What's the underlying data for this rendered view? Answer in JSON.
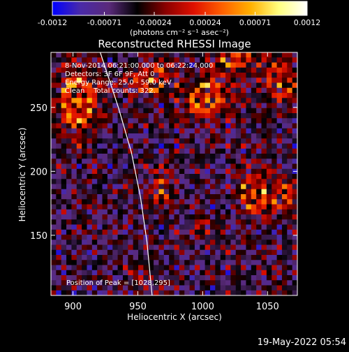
{
  "chart_data": {
    "type": "heatmap",
    "title": "Reconstructed RHESSI Image",
    "xlabel": "Heliocentric X (arcsec)",
    "ylabel": "Heliocentric Y (arcsec)",
    "xlim": [
      883,
      1073
    ],
    "ylim": [
      103,
      293
    ],
    "x_ticks": [
      900,
      950,
      1000,
      1050
    ],
    "y_ticks": [
      150,
      200,
      250
    ],
    "colorbar": {
      "min": -0.0012,
      "max": 0.0012,
      "tick_values": [
        -0.0012,
        -0.00071,
        -0.00024,
        0.00024,
        0.00071,
        0.0012
      ],
      "tick_labels": [
        "-0.0012",
        "-0.00071",
        "-0.00024",
        "0.00024",
        "0.00071",
        "0.0012"
      ],
      "label": "(photons cm⁻² s⁻¹ asec⁻²)",
      "colors": [
        "#0000ff",
        "#4a2aa8",
        "#5a2a7a",
        "#000000",
        "#8a0000",
        "#e01000",
        "#ff6000",
        "#ffb000",
        "#ffff80",
        "#ffffff"
      ]
    },
    "annotations": [
      "8-Nov-2014 06:21:00.000 to 06:22:24.000",
      "Detectors: 3F 6F 9F, Att 0",
      "Energy Range: 25.0 - 59.0 keV",
      "Clean    Total counts: 322.",
      "Position of Peak = [1028,295]"
    ],
    "limb_curve": [
      [
        921,
        293
      ],
      [
        935,
        250
      ],
      [
        945,
        215
      ],
      [
        952,
        180
      ],
      [
        957,
        145
      ],
      [
        961,
        103
      ]
    ],
    "sources": [
      {
        "x": 904,
        "y": 255,
        "sx": 12,
        "sy": 18,
        "amp": 0.0011
      },
      {
        "x": 960,
        "y": 272,
        "sx": 12,
        "sy": 10,
        "amp": 0.0009
      },
      {
        "x": 1003,
        "y": 257,
        "sx": 12,
        "sy": 12,
        "amp": 0.0011
      },
      {
        "x": 1025,
        "y": 290,
        "sx": 12,
        "sy": 8,
        "amp": 0.0009
      },
      {
        "x": 1060,
        "y": 270,
        "sx": 10,
        "sy": 14,
        "amp": 0.0008
      },
      {
        "x": 1040,
        "y": 183,
        "sx": 9,
        "sy": 14,
        "amp": 0.0009
      },
      {
        "x": 1062,
        "y": 180,
        "sx": 8,
        "sy": 10,
        "amp": 0.0007
      },
      {
        "x": 968,
        "y": 185,
        "sx": 7,
        "sy": 9,
        "amp": 0.0007
      },
      {
        "x": 1000,
        "y": 155,
        "sx": 7,
        "sy": 8,
        "amp": 0.0004
      },
      {
        "x": 955,
        "y": 120,
        "sx": 8,
        "sy": 6,
        "amp": 0.0004
      }
    ],
    "grid_n": 48
  },
  "timestamp": "19-May-2022 05:54"
}
